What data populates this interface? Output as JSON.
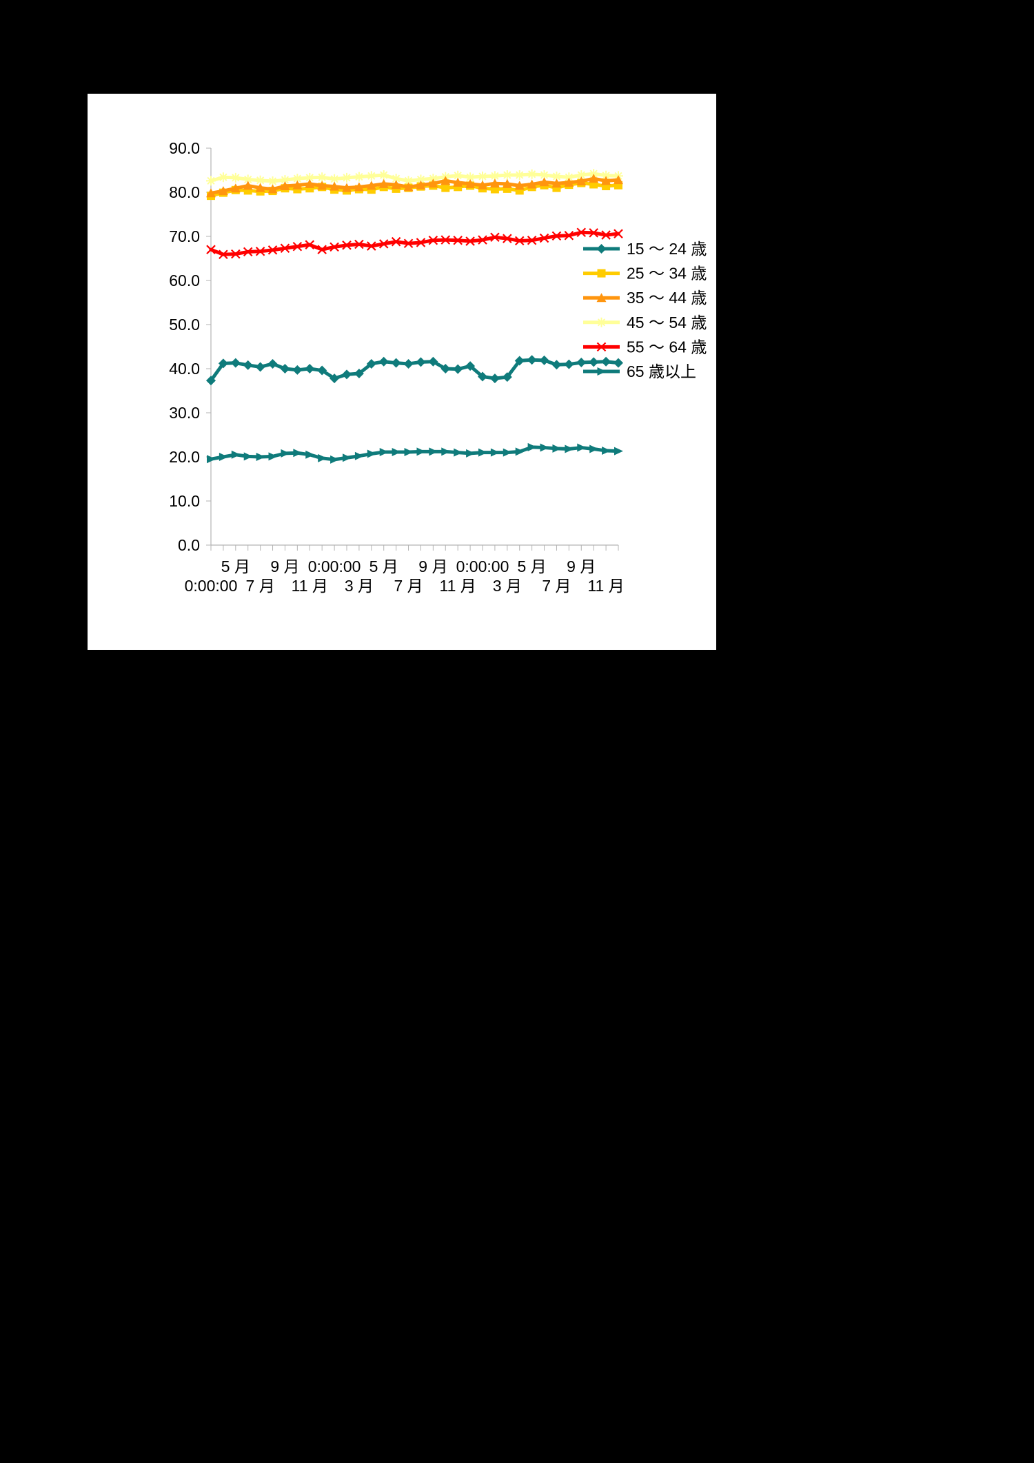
{
  "chart_data": {
    "type": "line",
    "title": "",
    "xlabel": "",
    "ylabel": "",
    "ylim": [
      0,
      90
    ],
    "ytick_step": 10,
    "ytick_labels": [
      "0.0",
      "10.0",
      "20.0",
      "30.0",
      "40.0",
      "50.0",
      "60.0",
      "70.0",
      "80.0",
      "90.0"
    ],
    "xtick_labels": [
      {
        "text": "0:00:00",
        "row": 2
      },
      {
        "text": "5 月",
        "row": 1
      },
      {
        "text": "7 月",
        "row": 2
      },
      {
        "text": "9 月",
        "row": 1
      },
      {
        "text": "11 月",
        "row": 2
      },
      {
        "text": "0:00:00",
        "row": 1
      },
      {
        "text": "3 月",
        "row": 2
      },
      {
        "text": "5 月",
        "row": 1
      },
      {
        "text": "7 月",
        "row": 2
      },
      {
        "text": "9 月",
        "row": 1
      },
      {
        "text": "11 月",
        "row": 2
      },
      {
        "text": "0:00:00",
        "row": 1
      },
      {
        "text": "3 月",
        "row": 2
      },
      {
        "text": "5 月",
        "row": 1
      },
      {
        "text": "7 月",
        "row": 2
      },
      {
        "text": "9 月",
        "row": 1
      },
      {
        "text": "11 月",
        "row": 2
      }
    ],
    "grid": false,
    "legend_position": "right",
    "series": [
      {
        "name": "15 ～ 24 歳",
        "color": "#0f7b7b",
        "marker": "diamond",
        "values": [
          37.3,
          41.2,
          41.3,
          40.8,
          40.4,
          41.1,
          40.0,
          39.7,
          40.0,
          39.6,
          37.8,
          38.7,
          38.9,
          41.1,
          41.6,
          41.3,
          41.1,
          41.5,
          41.6,
          40.0,
          39.9,
          40.6,
          38.2,
          37.8,
          38.1,
          41.8,
          42.0,
          41.9,
          40.9,
          41.0,
          41.4,
          41.5,
          41.6,
          41.3
        ]
      },
      {
        "name": "25 ～ 34 歳",
        "color": "#ffcc00",
        "marker": "square",
        "values": [
          79.2,
          79.9,
          80.5,
          80.4,
          80.2,
          80.3,
          80.9,
          80.7,
          80.9,
          81.2,
          80.6,
          80.4,
          80.7,
          80.6,
          81.2,
          80.8,
          81.0,
          81.3,
          81.5,
          81.0,
          81.2,
          81.5,
          80.9,
          80.7,
          80.8,
          80.4,
          81.2,
          81.6,
          81.0,
          81.7,
          82.1,
          81.8,
          81.4,
          81.6
        ]
      },
      {
        "name": "35 ～ 44 歳",
        "color": "#ff950e",
        "marker": "triangle",
        "values": [
          79.8,
          80.3,
          80.9,
          81.5,
          81.0,
          80.7,
          81.4,
          81.6,
          81.9,
          81.5,
          81.3,
          81.0,
          81.2,
          81.5,
          81.9,
          81.7,
          81.2,
          81.6,
          82.0,
          82.6,
          82.2,
          81.9,
          81.6,
          82.0,
          81.9,
          81.5,
          81.8,
          82.3,
          82.0,
          82.2,
          82.5,
          83.1,
          82.6,
          82.8
        ]
      },
      {
        "name": "45 ～ 54 歳",
        "color": "#ffff99",
        "marker": "star",
        "values": [
          82.6,
          83.4,
          83.3,
          82.9,
          82.7,
          82.5,
          82.8,
          83.1,
          83.3,
          83.4,
          83.0,
          83.3,
          83.5,
          83.7,
          83.9,
          83.1,
          82.6,
          82.9,
          83.1,
          83.5,
          83.8,
          83.4,
          83.6,
          83.7,
          83.9,
          83.9,
          84.1,
          83.9,
          83.6,
          83.4,
          83.9,
          84.2,
          83.8,
          83.7
        ]
      },
      {
        "name": "55 ～ 64 歳",
        "color": "#ff0000",
        "marker": "x",
        "values": [
          67.0,
          65.9,
          66.0,
          66.5,
          66.6,
          66.9,
          67.3,
          67.7,
          68.1,
          67.0,
          67.6,
          68.0,
          68.2,
          67.8,
          68.3,
          68.8,
          68.4,
          68.6,
          69.1,
          69.2,
          69.1,
          68.9,
          69.2,
          69.8,
          69.5,
          69.0,
          69.1,
          69.6,
          70.1,
          70.2,
          70.9,
          70.8,
          70.3,
          70.6
        ]
      },
      {
        "name": "65 歳以上",
        "color": "#0f7b7b",
        "marker": "triangle-right",
        "values": [
          19.5,
          20.0,
          20.5,
          20.1,
          20.0,
          20.1,
          20.8,
          20.9,
          20.5,
          19.7,
          19.4,
          19.8,
          20.2,
          20.7,
          21.1,
          21.1,
          21.1,
          21.2,
          21.2,
          21.2,
          21.0,
          20.8,
          21.0,
          21.0,
          21.0,
          21.2,
          22.2,
          22.1,
          21.9,
          21.8,
          22.1,
          21.8,
          21.4,
          21.3
        ]
      }
    ]
  }
}
